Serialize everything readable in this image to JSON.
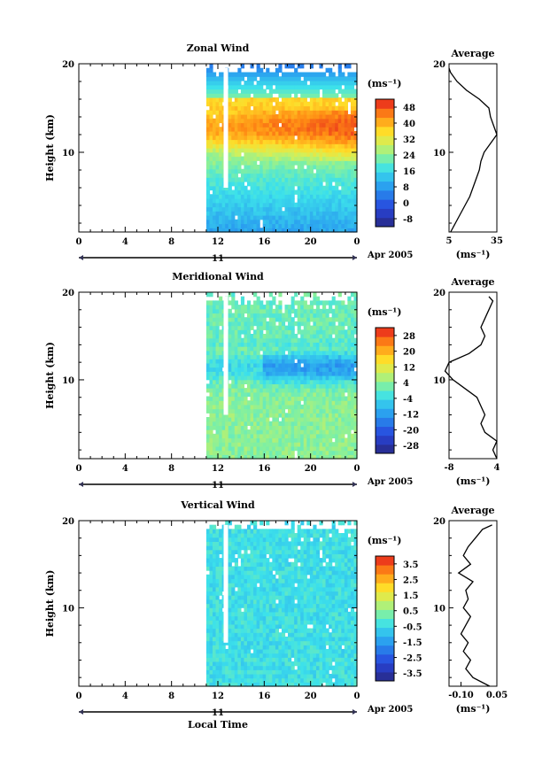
{
  "chart_data": [
    {
      "type": "heatmap",
      "title": "Zonal Wind",
      "ylabel": "Height (km)",
      "xticks": [
        "0",
        "4",
        "8",
        "12",
        "16",
        "20",
        "0"
      ],
      "xlim": [
        0,
        24
      ],
      "yticks": [
        "20",
        "10"
      ],
      "ylim": [
        1,
        20
      ],
      "date_label": "11",
      "month_label": "Apr 2005",
      "colorbar_units": "(ms⁻¹)",
      "colorbar_ticks": [
        "48",
        "40",
        "32",
        "24",
        "16",
        "8",
        "0",
        "-8"
      ],
      "colorbar_range": [
        -8,
        52
      ],
      "data_start_hour": 11,
      "profile": {
        "title": "Average",
        "xticks": [
          "5",
          "35"
        ],
        "xlim": [
          5,
          35
        ],
        "xlabel": "(ms⁻¹)",
        "yticks": [
          "20",
          "10"
        ],
        "heights": [
          1,
          2,
          3,
          4,
          5,
          6,
          7,
          8,
          9,
          10,
          11,
          12,
          13,
          14,
          15,
          16,
          17,
          18,
          19,
          19.5
        ],
        "values": [
          6,
          9,
          12,
          15,
          18,
          20,
          22,
          24,
          25,
          27,
          31,
          35,
          33,
          31,
          30,
          24,
          16,
          10,
          6,
          5
        ]
      }
    },
    {
      "type": "heatmap",
      "title": "Meridional Wind",
      "ylabel": "Height (km)",
      "xticks": [
        "0",
        "4",
        "8",
        "12",
        "16",
        "20",
        "0"
      ],
      "xlim": [
        0,
        24
      ],
      "yticks": [
        "20",
        "10"
      ],
      "ylim": [
        1,
        20
      ],
      "date_label": "11",
      "month_label": "Apr 2005",
      "colorbar_units": "(ms⁻¹)",
      "colorbar_ticks": [
        "28",
        "20",
        "12",
        "4",
        "-4",
        "-12",
        "-20",
        "-28"
      ],
      "colorbar_range": [
        -32,
        32
      ],
      "data_start_hour": 11,
      "profile": {
        "title": "Average",
        "xticks": [
          "-8",
          "4"
        ],
        "xlim": [
          -8,
          4
        ],
        "xlabel": "(ms⁻¹)",
        "yticks": [
          "20",
          "10"
        ],
        "heights": [
          1,
          2,
          3,
          4,
          5,
          6,
          7,
          8,
          9,
          10,
          11,
          12,
          13,
          14,
          15,
          16,
          17,
          18,
          19,
          19.5
        ],
        "values": [
          4,
          3,
          4,
          1,
          0,
          1,
          0,
          -1,
          -4,
          -7,
          -9,
          -8,
          -3,
          0,
          1,
          0,
          1,
          2,
          3,
          2
        ]
      }
    },
    {
      "type": "heatmap",
      "title": "Vertical Wind",
      "ylabel": "Height (km)",
      "xlabel": "Local Time",
      "xticks": [
        "0",
        "4",
        "8",
        "12",
        "16",
        "20",
        "0"
      ],
      "xlim": [
        0,
        24
      ],
      "yticks": [
        "20",
        "10"
      ],
      "ylim": [
        1,
        20
      ],
      "date_label": "11",
      "month_label": "Apr 2005",
      "colorbar_units": "(ms⁻¹)",
      "colorbar_ticks": [
        "3.5",
        "2.5",
        "1.5",
        "0.5",
        "-0.5",
        "-1.5",
        "-2.5",
        "-3.5"
      ],
      "colorbar_range": [
        -4,
        4
      ],
      "data_start_hour": 11,
      "profile": {
        "title": "Average",
        "xticks": [
          "-0.10",
          "0.05"
        ],
        "xlim": [
          -0.15,
          0.05
        ],
        "xlabel": "(ms⁻¹)",
        "yticks": [
          "20",
          "10"
        ],
        "heights": [
          1,
          2,
          3,
          4,
          5,
          6,
          7,
          8,
          9,
          10,
          11,
          12,
          13,
          14,
          15,
          16,
          17,
          18,
          19,
          19.5
        ],
        "values": [
          0.02,
          -0.05,
          -0.08,
          -0.06,
          -0.09,
          -0.07,
          -0.1,
          -0.08,
          -0.06,
          -0.09,
          -0.07,
          -0.08,
          -0.05,
          -0.11,
          -0.06,
          -0.09,
          -0.07,
          -0.04,
          -0.01,
          0.03
        ]
      }
    }
  ]
}
